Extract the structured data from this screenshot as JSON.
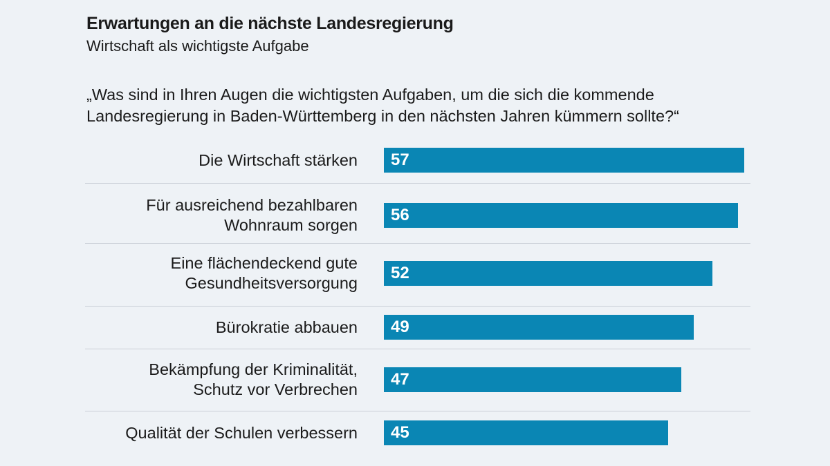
{
  "title": "Erwartungen an die nächste Landesregierung",
  "subtitle": "Wirtschaft als wichtigste Aufgabe",
  "question": "„Was sind in Ihren Augen die wichtigsten Aufgaben, um die sich die kommende Landesregierung in Baden-Württemberg in den nächsten Jahren kümmern sollte?“",
  "colors": {
    "bar": "#0a86b4",
    "background": "#eef2f6"
  },
  "chart_data": {
    "type": "bar",
    "orientation": "horizontal",
    "categories": [
      "Die Wirtschaft stärken",
      "Für ausreichend bezahlbaren\nWohnraum sorgen",
      "Eine flächendeckend gute\nGesundheitsversorgung",
      "Bürokratie abbauen",
      "Bekämpfung der Kriminalität,\nSchutz vor Verbrechen",
      "Qualität der Schulen verbessern"
    ],
    "values": [
      57,
      56,
      52,
      49,
      47,
      45
    ],
    "data_labels": [
      "57",
      "56",
      "52",
      "49",
      "47",
      "45"
    ],
    "xlim": [
      0,
      57
    ],
    "grid": false
  }
}
